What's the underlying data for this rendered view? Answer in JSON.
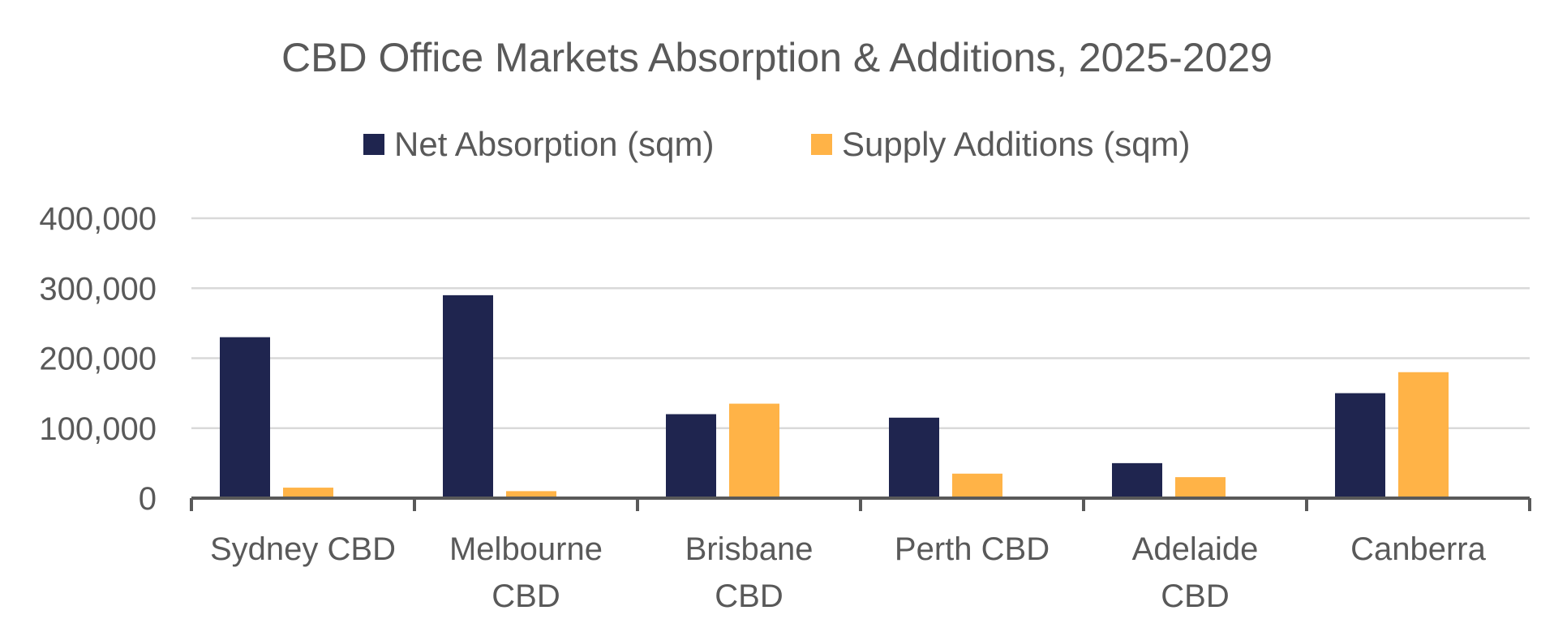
{
  "chart_data": {
    "type": "bar",
    "title": "CBD Office Markets Absorption & Additions, 2025-2029",
    "xlabel": "",
    "ylabel": "",
    "ylim": [
      0,
      400000
    ],
    "yticks": [
      {
        "value": 0,
        "label": "0"
      },
      {
        "value": 100000,
        "label": "100,000"
      },
      {
        "value": 200000,
        "label": "200,000"
      },
      {
        "value": 300000,
        "label": "300,000"
      },
      {
        "value": 400000,
        "label": "400,000"
      }
    ],
    "categories": [
      [
        "Sydney CBD"
      ],
      [
        "Melbourne",
        "CBD"
      ],
      [
        "Brisbane",
        "CBD"
      ],
      [
        "Perth CBD"
      ],
      [
        "Adelaide",
        "CBD"
      ],
      [
        "Canberra"
      ]
    ],
    "series": [
      {
        "name": "Net Absorption (sqm)",
        "color": "#1f254f",
        "values": [
          230000,
          290000,
          120000,
          115000,
          50000,
          150000
        ]
      },
      {
        "name": "Supply Additions (sqm)",
        "color": "#ffb347",
        "values": [
          15000,
          10000,
          135000,
          35000,
          30000,
          180000
        ]
      }
    ],
    "grid": true,
    "legend_position": "top-center"
  }
}
